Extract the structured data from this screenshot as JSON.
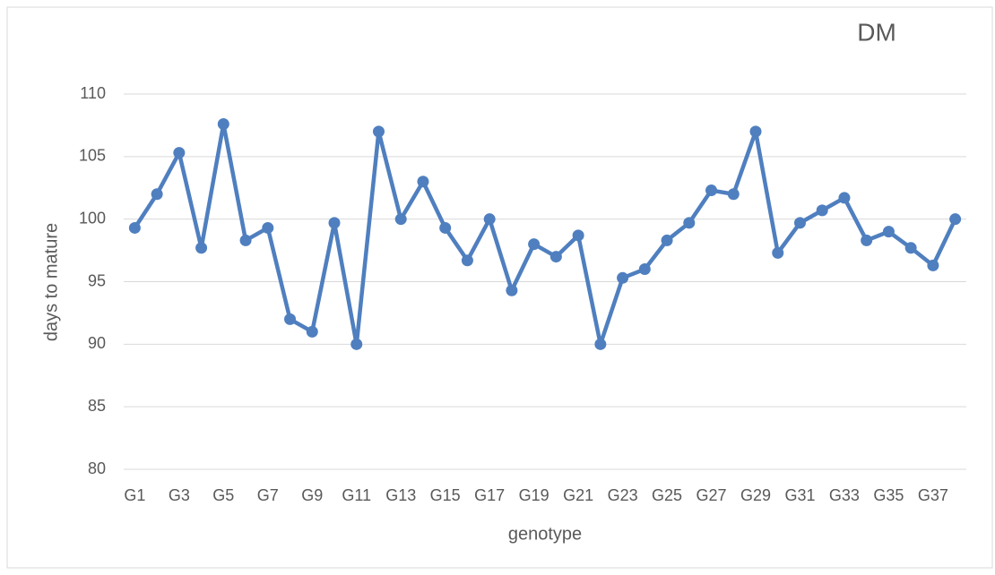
{
  "chart_data": {
    "type": "line",
    "title": "DM",
    "x_label": "genotype",
    "y_label": "days to mature",
    "categories": [
      "G1",
      null,
      "G3",
      null,
      "G5",
      null,
      "G7",
      null,
      "G9",
      null,
      "G11",
      null,
      "G13",
      null,
      "G15",
      null,
      "G17",
      null,
      "G19",
      null,
      "G21",
      null,
      "G23",
      null,
      "G25",
      null,
      "G27",
      null,
      "G29",
      null,
      "G31",
      null,
      "G33",
      null,
      "G35",
      null,
      "G37",
      null
    ],
    "series": [
      {
        "name": "DM",
        "color": "#4f7fbf",
        "values": [
          99.3,
          102.0,
          105.3,
          97.7,
          107.6,
          98.3,
          99.3,
          92.0,
          91.0,
          99.7,
          90.0,
          107.0,
          100.0,
          103.0,
          99.3,
          96.7,
          100.0,
          94.3,
          98.0,
          97.0,
          98.7,
          90.0,
          95.3,
          96.0,
          98.3,
          99.7,
          102.3,
          102.0,
          107.0,
          97.3,
          99.7,
          100.7,
          101.7,
          98.3,
          99.0,
          97.7,
          96.3,
          100.0
        ]
      }
    ],
    "ylim": [
      80,
      110
    ],
    "yticks": [
      80,
      85,
      90,
      95,
      100,
      105,
      110
    ],
    "grid": true
  }
}
